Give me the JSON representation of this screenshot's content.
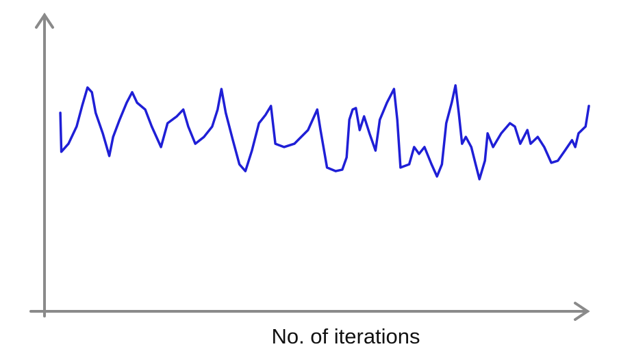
{
  "chart_data": {
    "type": "line",
    "x_label": "No. of iterations",
    "xlim": [
      0,
      100
    ],
    "ylim": [
      0,
      100
    ],
    "x": [
      2.9,
      3.1,
      4.4,
      5.9,
      6.9,
      7.9,
      8.7,
      9.4,
      10.7,
      11.9,
      12.6,
      13.8,
      15.1,
      16.1,
      17.0,
      18.5,
      19.7,
      21.4,
      22.6,
      24.3,
      25.5,
      26.4,
      27.7,
      29.3,
      30.8,
      31.8,
      32.5,
      33.3,
      34.6,
      35.8,
      36.9,
      38.1,
      39.4,
      40.6,
      41.6,
      42.4,
      44.0,
      45.9,
      48.4,
      50.1,
      50.7,
      51.9,
      53.5,
      54.7,
      55.5,
      56.0,
      56.6,
      57.2,
      57.9,
      58.7,
      59.7,
      60.8,
      61.6,
      62.9,
      64.2,
      64.8,
      65.4,
      67.0,
      67.9,
      68.8,
      69.8,
      71.1,
      72.1,
      73.0,
      73.8,
      74.8,
      75.5,
      76.1,
      76.7,
      77.4,
      78.4,
      79.2,
      79.9,
      80.9,
      81.4,
      82.4,
      83.9,
      85.5,
      86.4,
      87.4,
      88.7,
      89.3,
      90.6,
      91.8,
      93.1,
      94.3,
      95.6,
      96.9,
      97.5,
      98.1,
      99.4,
      100.0
    ],
    "color": "#1f1fd6",
    "values": [
      66.7,
      53.6,
      56.3,
      62.1,
      69.0,
      75.2,
      73.6,
      66.7,
      59.8,
      52.2,
      58.6,
      64.4,
      70.1,
      73.6,
      70.1,
      67.8,
      62.1,
      55.2,
      63.2,
      65.5,
      67.8,
      62.1,
      56.3,
      58.6,
      62.1,
      67.8,
      74.7,
      66.7,
      57.5,
      49.4,
      47.1,
      54.0,
      63.2,
      66.0,
      69.0,
      56.3,
      55.2,
      56.3,
      60.9,
      67.8,
      60.9,
      48.3,
      47.1,
      47.6,
      51.7,
      64.4,
      67.8,
      68.3,
      60.9,
      65.5,
      59.8,
      54.0,
      64.4,
      70.1,
      74.7,
      64.4,
      48.3,
      49.4,
      55.2,
      52.9,
      55.2,
      49.4,
      45.3,
      49.4,
      63.2,
      70.1,
      75.9,
      66.7,
      56.3,
      58.6,
      55.2,
      49.4,
      44.4,
      50.6,
      59.8,
      55.2,
      59.8,
      63.2,
      62.1,
      56.3,
      60.9,
      56.3,
      58.6,
      55.2,
      49.9,
      50.6,
      54.0,
      57.5,
      55.2,
      59.8,
      62.1,
      69.0
    ]
  }
}
